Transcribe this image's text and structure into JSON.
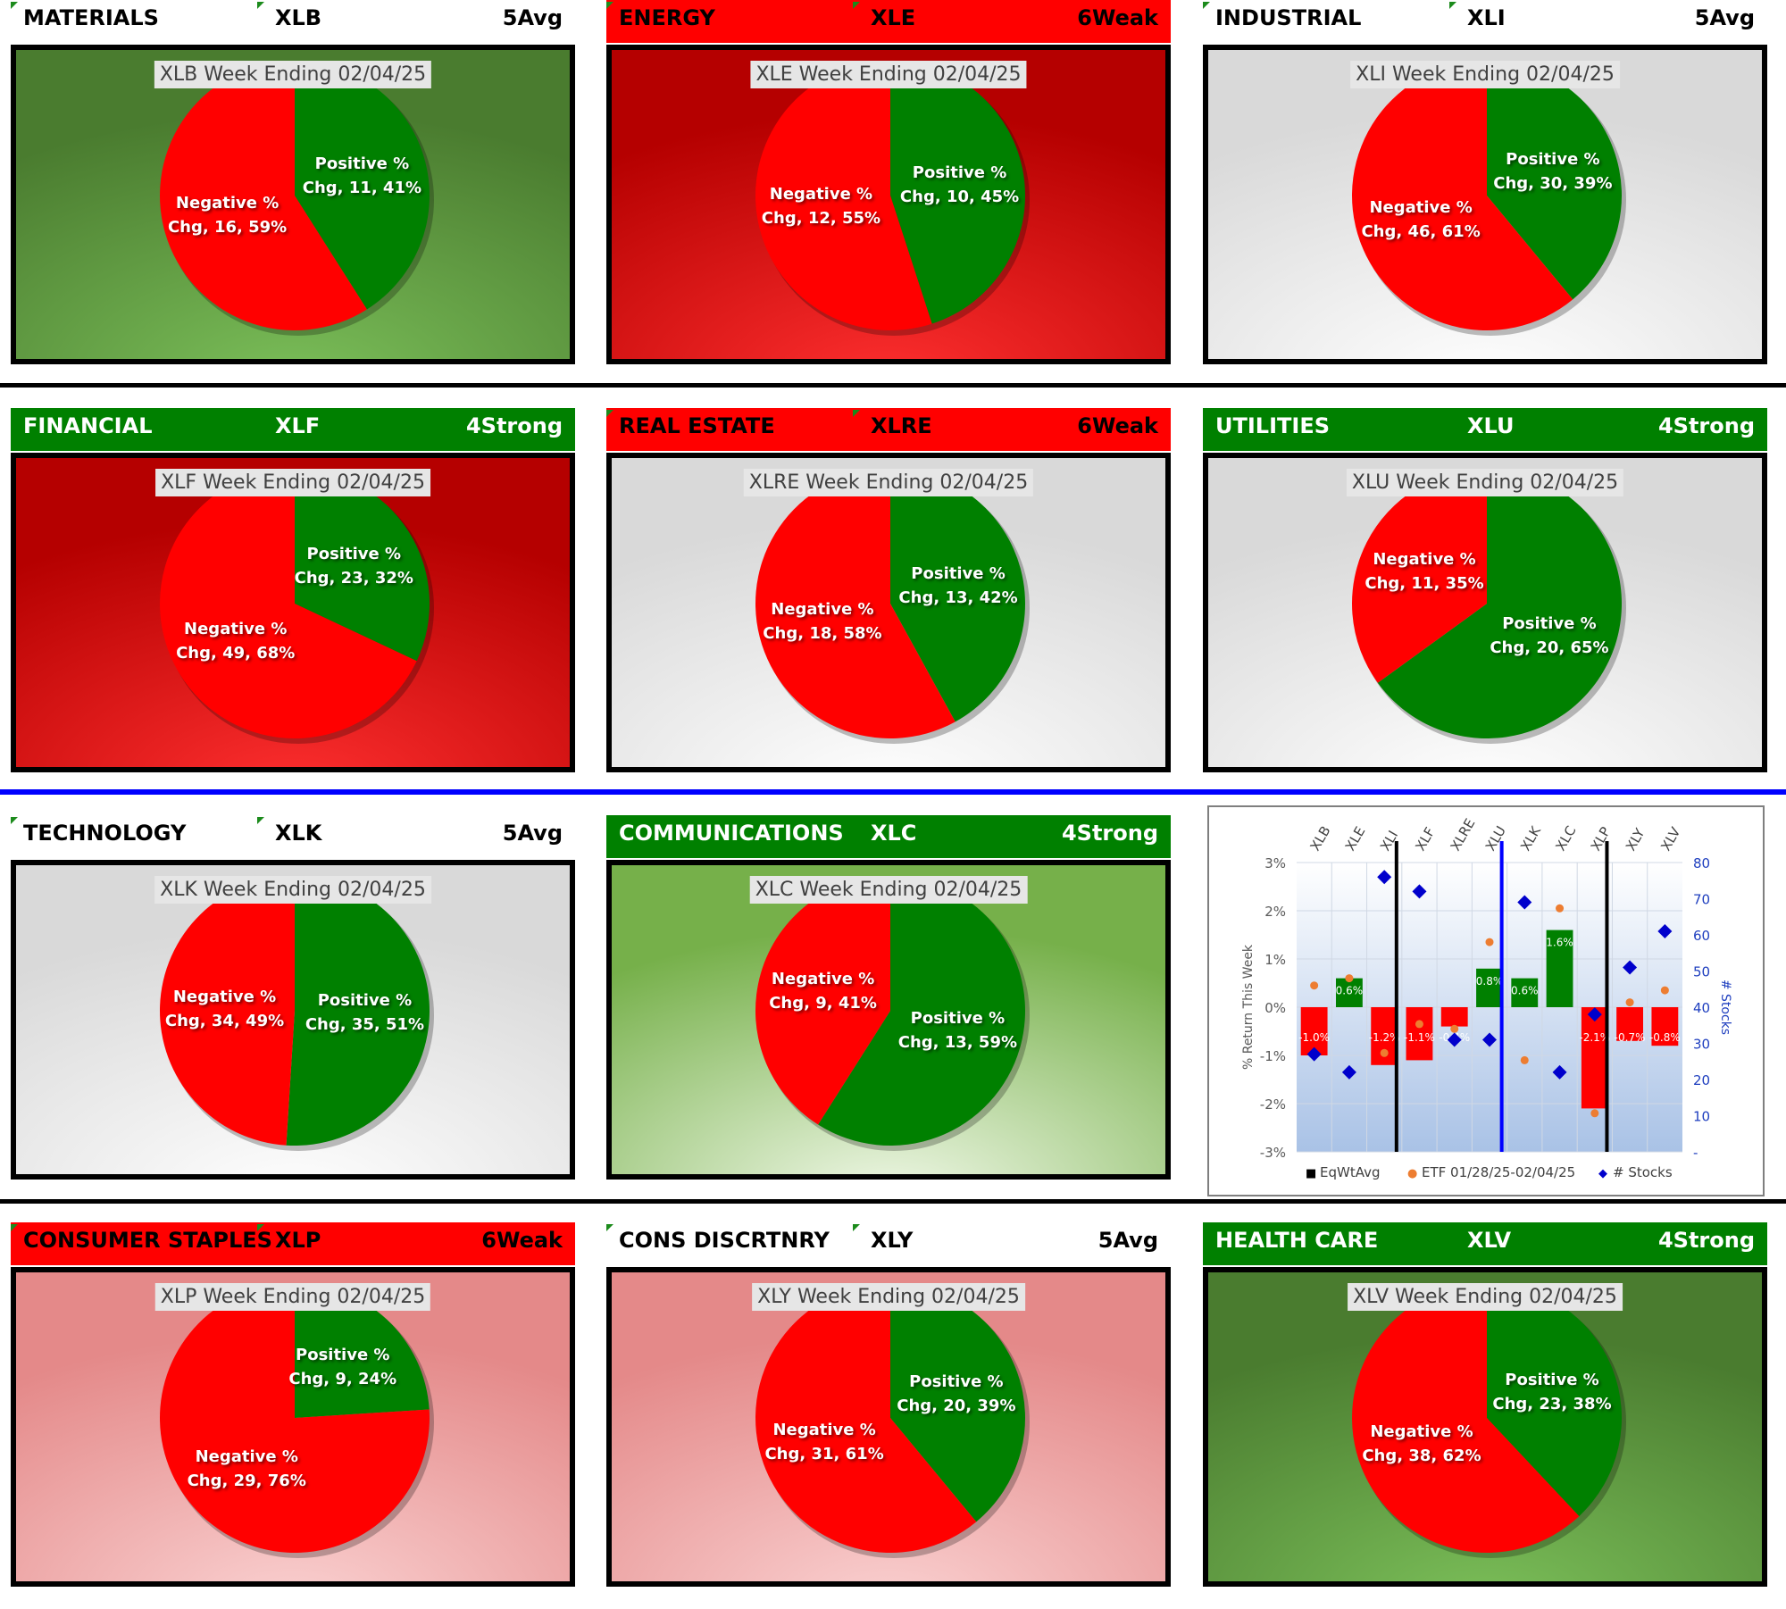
{
  "sectors": [
    {
      "name": "MATERIALS",
      "ticker": "XLB",
      "rating": "5Avg",
      "hdr": "none",
      "bg": "green-dark",
      "title": "XLB Week Ending 02/04/25",
      "pos": {
        "line1": "Positive %",
        "line2": "Chg, 11, 41%"
      },
      "neg": {
        "line1": "Negative %",
        "line2": "Chg, 16, 59%"
      },
      "pos_pct": 41
    },
    {
      "name": "ENERGY",
      "ticker": "XLE",
      "rating": "6Weak",
      "hdr": "red",
      "bg": "red-dark",
      "title": "XLE Week Ending 02/04/25",
      "pos": {
        "line1": "Positive %",
        "line2": "Chg, 10, 45%"
      },
      "neg": {
        "line1": "Negative %",
        "line2": "Chg, 12, 55%"
      },
      "pos_pct": 45
    },
    {
      "name": "INDUSTRIAL",
      "ticker": "XLI",
      "rating": "5Avg",
      "hdr": "none",
      "bg": "gray",
      "title": "XLI Week Ending 02/04/25",
      "pos": {
        "line1": "Positive %",
        "line2": "Chg, 30, 39%"
      },
      "neg": {
        "line1": "Negative %",
        "line2": "Chg, 46, 61%"
      },
      "pos_pct": 39
    },
    {
      "name": "FINANCIAL",
      "ticker": "XLF",
      "rating": "4Strong",
      "hdr": "green",
      "bg": "red-dark",
      "title": "XLF Week Ending 02/04/25",
      "pos": {
        "line1": "Positive %",
        "line2": "Chg, 23, 32%"
      },
      "neg": {
        "line1": "Negative %",
        "line2": "Chg, 49, 68%"
      },
      "pos_pct": 32
    },
    {
      "name": "REAL ESTATE",
      "ticker": "XLRE",
      "rating": "6Weak",
      "hdr": "red",
      "bg": "gray",
      "title": "XLRE Week Ending 02/04/25",
      "pos": {
        "line1": "Positive %",
        "line2": "Chg, 13, 42%"
      },
      "neg": {
        "line1": "Negative %",
        "line2": "Chg, 18, 58%"
      },
      "pos_pct": 42
    },
    {
      "name": "UTILITIES",
      "ticker": "XLU",
      "rating": "4Strong",
      "hdr": "green",
      "bg": "gray",
      "title": "XLU Week Ending 02/04/25",
      "pos": {
        "line1": "Positive %",
        "line2": "Chg, 20, 65%"
      },
      "neg": {
        "line1": "Negative %",
        "line2": "Chg, 11, 35%"
      },
      "pos_pct": 65
    },
    {
      "name": "TECHNOLOGY",
      "ticker": "XLK",
      "rating": "5Avg",
      "hdr": "none",
      "bg": "gray",
      "title": "XLK Week Ending 02/04/25",
      "pos": {
        "line1": "Positive %",
        "line2": "Chg, 35, 51%"
      },
      "neg": {
        "line1": "Negative %",
        "line2": "Chg, 34, 49%"
      },
      "pos_pct": 51
    },
    {
      "name": "COMMUNICATIONS",
      "ticker": "XLC",
      "rating": "4Strong",
      "hdr": "green",
      "bg": "green-light",
      "title": "XLC Week Ending 02/04/25",
      "pos": {
        "line1": "Positive %",
        "line2": "Chg, 13, 59%"
      },
      "neg": {
        "line1": "Negative %",
        "line2": "Chg, 9, 41%"
      },
      "pos_pct": 59
    },
    {
      "name": "CONSUMER STAPLES",
      "ticker": "XLP",
      "rating": "6Weak",
      "hdr": "red",
      "bg": "pink",
      "title": "XLP Week Ending 02/04/25",
      "pos": {
        "line1": "Positive %",
        "line2": "Chg, 9, 24%"
      },
      "neg": {
        "line1": "Negative %",
        "line2": "Chg, 29, 76%"
      },
      "pos_pct": 24
    },
    {
      "name": "CONS DISCRTNRY",
      "ticker": "XLY",
      "rating": "5Avg",
      "hdr": "none",
      "bg": "pink",
      "title": "XLY Week Ending 02/04/25",
      "pos": {
        "line1": "Positive %",
        "line2": "Chg, 20, 39%"
      },
      "neg": {
        "line1": "Negative %",
        "line2": "Chg, 31, 61%"
      },
      "pos_pct": 39
    },
    {
      "name": "HEALTH CARE",
      "ticker": "XLV",
      "rating": "4Strong",
      "hdr": "green",
      "bg": "green-dark",
      "title": "XLV Week Ending 02/04/25",
      "pos": {
        "line1": "Positive %",
        "line2": "Chg, 23, 38%"
      },
      "neg": {
        "line1": "Negative %",
        "line2": "Chg, 38, 62%"
      },
      "pos_pct": 38
    }
  ],
  "colors": {
    "positive": "#008000",
    "negative": "#ff0000",
    "header_green": "#008000",
    "header_red": "#ff0000",
    "separator_blue": "#0000ff",
    "diamond": "#0000cc",
    "dot": "#ed7d31"
  },
  "chart_data": [
    {
      "type": "pie",
      "title": "XLB Week Ending 02/04/25",
      "labels": [
        "Positive % Chg",
        "Negative % Chg"
      ],
      "counts": [
        11,
        16
      ],
      "values": [
        41,
        59
      ]
    },
    {
      "type": "pie",
      "title": "XLE Week Ending 02/04/25",
      "labels": [
        "Positive % Chg",
        "Negative % Chg"
      ],
      "counts": [
        10,
        12
      ],
      "values": [
        45,
        55
      ]
    },
    {
      "type": "pie",
      "title": "XLI Week Ending 02/04/25",
      "labels": [
        "Positive % Chg",
        "Negative % Chg"
      ],
      "counts": [
        30,
        46
      ],
      "values": [
        39,
        61
      ]
    },
    {
      "type": "pie",
      "title": "XLF Week Ending 02/04/25",
      "labels": [
        "Positive % Chg",
        "Negative % Chg"
      ],
      "counts": [
        23,
        49
      ],
      "values": [
        32,
        68
      ]
    },
    {
      "type": "pie",
      "title": "XLRE Week Ending 02/04/25",
      "labels": [
        "Positive % Chg",
        "Negative % Chg"
      ],
      "counts": [
        13,
        18
      ],
      "values": [
        42,
        58
      ]
    },
    {
      "type": "pie",
      "title": "XLU Week Ending 02/04/25",
      "labels": [
        "Positive % Chg",
        "Negative % Chg"
      ],
      "counts": [
        20,
        11
      ],
      "values": [
        65,
        35
      ]
    },
    {
      "type": "pie",
      "title": "XLK Week Ending 02/04/25",
      "labels": [
        "Positive % Chg",
        "Negative % Chg"
      ],
      "counts": [
        35,
        34
      ],
      "values": [
        51,
        49
      ]
    },
    {
      "type": "pie",
      "title": "XLC Week Ending 02/04/25",
      "labels": [
        "Positive % Chg",
        "Negative % Chg"
      ],
      "counts": [
        13,
        9
      ],
      "values": [
        59,
        41
      ]
    },
    {
      "type": "pie",
      "title": "XLP Week Ending 02/04/25",
      "labels": [
        "Positive % Chg",
        "Negative % Chg"
      ],
      "counts": [
        9,
        29
      ],
      "values": [
        24,
        76
      ]
    },
    {
      "type": "pie",
      "title": "XLY Week Ending 02/04/25",
      "labels": [
        "Positive % Chg",
        "Negative % Chg"
      ],
      "counts": [
        20,
        31
      ],
      "values": [
        39,
        61
      ]
    },
    {
      "type": "pie",
      "title": "XLV Week Ending 02/04/25",
      "labels": [
        "Positive % Chg",
        "Negative % Chg"
      ],
      "counts": [
        23,
        38
      ],
      "values": [
        38,
        62
      ]
    },
    {
      "type": "bar",
      "categories": [
        "XLB",
        "XLE",
        "XLI",
        "XLF",
        "XLRE",
        "XLU",
        "XLK",
        "XLC",
        "XLP",
        "XLY",
        "XLV"
      ],
      "series": [
        {
          "name": "EqWtAvg",
          "values": [
            -1.0,
            0.6,
            -1.2,
            -1.1,
            -0.4,
            0.8,
            0.6,
            1.6,
            -2.1,
            -0.7,
            -0.8
          ],
          "labels": [
            "-1.0%",
            "0.6%",
            "-1.2%",
            "-1.1%",
            "-0.4%",
            "0.8%",
            "0.6%",
            "1.6%",
            "-2.1%",
            "-0.7%",
            "-0.8%"
          ]
        },
        {
          "name": "ETF 01/28/25-02/04/25",
          "values": [
            0.45,
            0.6,
            -0.95,
            -0.35,
            -0.45,
            1.35,
            -1.1,
            2.05,
            -2.2,
            0.1,
            0.35
          ]
        },
        {
          "name": "# Stocks",
          "values": [
            27,
            22,
            76,
            72,
            31,
            31,
            69,
            22,
            38,
            51,
            61
          ]
        }
      ],
      "ylabel": "% Return This Week",
      "y2label": "# Stocks",
      "ylim": [
        -3,
        3
      ],
      "y2lim": [
        0,
        80
      ],
      "yticks": [
        "3%",
        "2%",
        "1%",
        "0%",
        "-1%",
        "-2%",
        "-3%"
      ],
      "y2ticks": [
        "80",
        "70",
        "60",
        "50",
        "40",
        "30",
        "20",
        "10",
        "-"
      ],
      "legend": [
        {
          "marker": "■",
          "text": "EqWtAvg"
        },
        {
          "marker": "●",
          "text": "ETF 01/28/25-02/04/25"
        },
        {
          "marker": "◆",
          "text": "# Stocks"
        }
      ]
    }
  ]
}
